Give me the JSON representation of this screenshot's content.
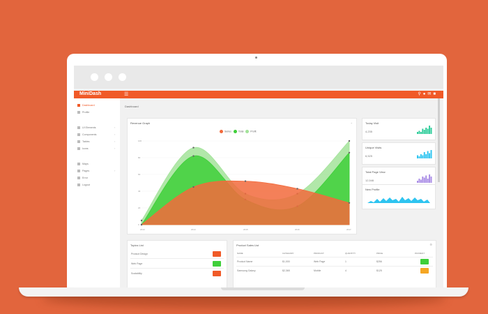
{
  "colors": {
    "background": "#e2653d",
    "brand": "#f05a28",
    "green": "#3fcf3a",
    "light_green": "#a3e39a",
    "red_badge": "#f05a28",
    "green_badge": "#3fcf3a",
    "orange_badge": "#f5a623",
    "sparkline_green": "#2ecc9a",
    "sparkline_blue": "#2ec4f0",
    "sparkline_purple": "#a98ce6"
  },
  "app": {
    "logo_text": "MiniDash"
  },
  "topbar": {
    "icons": [
      "search-icon",
      "bell-icon",
      "mail-icon",
      "user-icon"
    ]
  },
  "sidebar": {
    "items": [
      {
        "label": "Dashboard",
        "icon": "dashboard-icon",
        "active": true
      },
      {
        "label": "Profile",
        "icon": "user-icon",
        "active": false
      },
      {
        "label": "UI Elements",
        "icon": "layers-icon",
        "active": false
      },
      {
        "label": "Components",
        "icon": "grid-icon",
        "active": false
      },
      {
        "label": "Tables",
        "icon": "table-icon",
        "active": false
      },
      {
        "label": "Icons",
        "icon": "star-icon",
        "active": false
      },
      {
        "label": "Maps",
        "icon": "map-icon",
        "active": false
      },
      {
        "label": "Pages",
        "icon": "file-icon",
        "active": false
      },
      {
        "label": "Error",
        "icon": "alert-icon",
        "active": false
      },
      {
        "label": "Logout",
        "icon": "logout-icon",
        "active": false
      }
    ]
  },
  "breadcrumb": {
    "title": "Dashboard"
  },
  "chart_data": {
    "type": "area",
    "title": "Revenue Graph",
    "x": [
      2013,
      2014,
      2015,
      2016,
      2017
    ],
    "x_tick_labels": [
      "2013",
      "2014",
      "2015",
      "2016",
      "2017"
    ],
    "y_tick_labels": [
      "100",
      "80",
      "60",
      "40",
      "20",
      "0"
    ],
    "ylim": [
      0,
      100
    ],
    "legend_placement": "top-center",
    "series": [
      {
        "name": "Series",
        "color": "#f26a3c",
        "values": [
          0,
          45,
          52,
          43,
          26
        ]
      },
      {
        "name": "Total",
        "color": "#3fcf3a",
        "values": [
          0,
          82,
          30,
          22,
          86
        ]
      },
      {
        "name": "Profit",
        "color": "#a3e39a",
        "values": [
          5,
          92,
          37,
          37,
          100
        ]
      }
    ]
  },
  "stats": [
    {
      "title": "Today Visit",
      "value": "4,235",
      "spark_color": "#2ecc9a",
      "spark": [
        2,
        3,
        2,
        5,
        4,
        6,
        5,
        8,
        6
      ]
    },
    {
      "title": "Unique Visits",
      "value": "6,525",
      "spark_color": "#2ec4f0",
      "spark": [
        3,
        2,
        4,
        3,
        6,
        4,
        7,
        5,
        8
      ]
    },
    {
      "title": "Total Page View",
      "value": "12,546",
      "spark_color": "#a98ce6",
      "spark": [
        2,
        4,
        3,
        6,
        5,
        7,
        4,
        8,
        6
      ]
    },
    {
      "title": "New Profile",
      "spark_color": "#2ec4f0"
    }
  ],
  "table_left": {
    "title": "Topics List",
    "rows": [
      {
        "label": "Product Design",
        "badge": "#f05a28"
      },
      {
        "label": "Web Page",
        "badge": "#3fcf3a"
      },
      {
        "label": "Scalability",
        "badge": "#f05a28"
      }
    ]
  },
  "table_right": {
    "title": "Product Sales List",
    "columns": [
      "NAME",
      "CATEGORY",
      "PRODUCT",
      "QUANTITY",
      "PRICE",
      "PAYMENT"
    ],
    "rows": [
      {
        "cells": [
          "Product Name",
          "$1,000",
          "Web Page",
          "1",
          "$256"
        ],
        "badge": "#3fcf3a"
      },
      {
        "cells": [
          "Samsung Galaxy",
          "$2,365",
          "Mobile",
          "4",
          "$125"
        ],
        "badge": "#f5a623"
      }
    ]
  }
}
